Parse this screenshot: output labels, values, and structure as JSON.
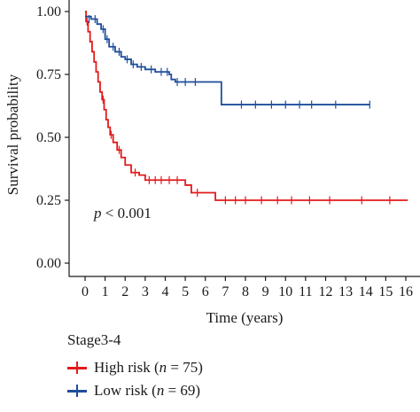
{
  "chart_data": {
    "type": "line",
    "subtype": "kaplan-meier",
    "ylabel": "Survival probability",
    "xlabel": "Time (years)",
    "xlim": [
      0,
      16
    ],
    "ylim": [
      0,
      1
    ],
    "xticks": [
      "0",
      "1",
      "2",
      "3",
      "4",
      "5",
      "6",
      "7",
      "8",
      "9",
      "10",
      "11",
      "12",
      "13",
      "14",
      "15",
      "16"
    ],
    "yticks": [
      "0.00",
      "0.25",
      "0.50",
      "0.75",
      "1.00"
    ],
    "annotation": {
      "p_symbol": "p",
      "p_rest": " < 0.001"
    },
    "legend_title": "Stage3-4",
    "series": [
      {
        "key": "high",
        "legend_prefix": "High risk (",
        "legend_n_symbol": "n",
        "legend_suffix": " = 75)",
        "color": "#e31a1c",
        "steps": [
          [
            0,
            1.0
          ],
          [
            0.05,
            0.96
          ],
          [
            0.15,
            0.92
          ],
          [
            0.25,
            0.88
          ],
          [
            0.35,
            0.84
          ],
          [
            0.45,
            0.8
          ],
          [
            0.55,
            0.76
          ],
          [
            0.65,
            0.72
          ],
          [
            0.75,
            0.68
          ],
          [
            0.85,
            0.65
          ],
          [
            0.95,
            0.61
          ],
          [
            1.05,
            0.57
          ],
          [
            1.15,
            0.54
          ],
          [
            1.25,
            0.51
          ],
          [
            1.4,
            0.48
          ],
          [
            1.6,
            0.45
          ],
          [
            1.8,
            0.42
          ],
          [
            2.0,
            0.39
          ],
          [
            2.3,
            0.36
          ],
          [
            2.7,
            0.35
          ],
          [
            3.0,
            0.33
          ],
          [
            5.0,
            0.31
          ],
          [
            5.3,
            0.28
          ],
          [
            6.5,
            0.25
          ],
          [
            16.1,
            0.25
          ]
        ],
        "censors": [
          [
            0.1,
            0.96
          ],
          [
            0.9,
            0.65
          ],
          [
            1.3,
            0.51
          ],
          [
            1.7,
            0.45
          ],
          [
            2.5,
            0.36
          ],
          [
            3.2,
            0.33
          ],
          [
            3.5,
            0.33
          ],
          [
            3.8,
            0.33
          ],
          [
            4.2,
            0.33
          ],
          [
            4.6,
            0.33
          ],
          [
            5.6,
            0.28
          ],
          [
            7.0,
            0.25
          ],
          [
            7.5,
            0.25
          ],
          [
            8.0,
            0.25
          ],
          [
            8.8,
            0.25
          ],
          [
            9.6,
            0.25
          ],
          [
            10.3,
            0.25
          ],
          [
            11.2,
            0.25
          ],
          [
            12.2,
            0.25
          ],
          [
            13.8,
            0.25
          ],
          [
            15.2,
            0.25
          ]
        ]
      },
      {
        "key": "low",
        "legend_prefix": "Low risk (",
        "legend_n_symbol": "n",
        "legend_suffix": " = 69)",
        "color": "#1f4e9c",
        "steps": [
          [
            0,
            0.98
          ],
          [
            0.3,
            0.97
          ],
          [
            0.6,
            0.95
          ],
          [
            0.8,
            0.93
          ],
          [
            1.0,
            0.89
          ],
          [
            1.2,
            0.86
          ],
          [
            1.5,
            0.84
          ],
          [
            1.8,
            0.82
          ],
          [
            2.0,
            0.81
          ],
          [
            2.3,
            0.79
          ],
          [
            2.6,
            0.78
          ],
          [
            3.0,
            0.77
          ],
          [
            3.5,
            0.76
          ],
          [
            4.2,
            0.75
          ],
          [
            4.3,
            0.73
          ],
          [
            4.5,
            0.72
          ],
          [
            6.7,
            0.72
          ],
          [
            6.8,
            0.63
          ],
          [
            14.2,
            0.63
          ]
        ],
        "censors": [
          [
            0.2,
            0.97
          ],
          [
            0.5,
            0.97
          ],
          [
            0.9,
            0.93
          ],
          [
            1.1,
            0.89
          ],
          [
            1.4,
            0.86
          ],
          [
            1.7,
            0.84
          ],
          [
            2.1,
            0.81
          ],
          [
            2.4,
            0.79
          ],
          [
            2.8,
            0.78
          ],
          [
            3.3,
            0.77
          ],
          [
            3.8,
            0.76
          ],
          [
            4.1,
            0.76
          ],
          [
            4.6,
            0.72
          ],
          [
            5.0,
            0.72
          ],
          [
            5.5,
            0.72
          ],
          [
            7.8,
            0.63
          ],
          [
            8.5,
            0.63
          ],
          [
            9.3,
            0.63
          ],
          [
            10.0,
            0.63
          ],
          [
            10.7,
            0.63
          ],
          [
            11.3,
            0.63
          ],
          [
            12.5,
            0.63
          ],
          [
            14.2,
            0.63
          ]
        ]
      }
    ]
  }
}
